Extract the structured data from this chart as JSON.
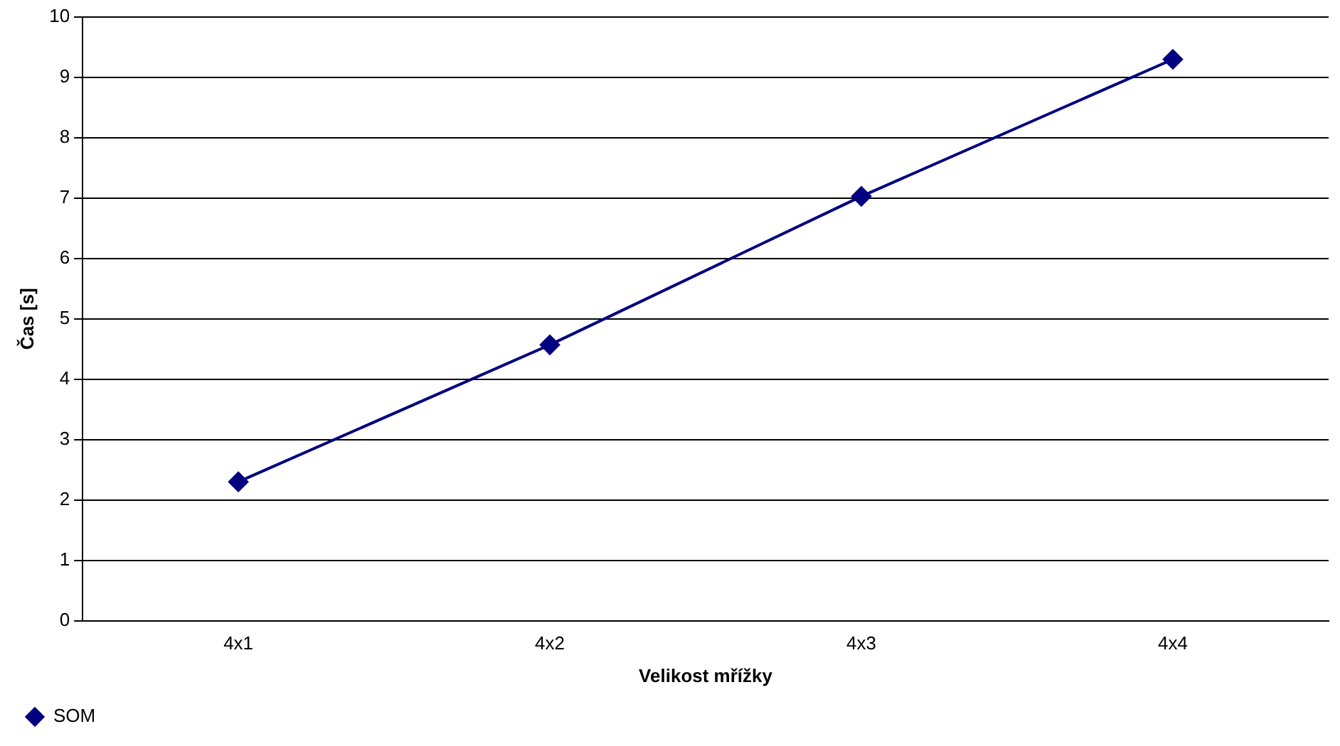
{
  "chart_data": {
    "type": "line",
    "xlabel": "Velikost mřížky",
    "ylabel": "Čas [s]",
    "categories": [
      "4x1",
      "4x2",
      "4x3",
      "4x4"
    ],
    "series": [
      {
        "name": "SOM",
        "color": "#000080",
        "values": [
          2.3,
          4.57,
          7.03,
          9.3
        ]
      }
    ],
    "ylim": [
      0,
      10
    ],
    "yticks": [
      0,
      1,
      2,
      3,
      4,
      5,
      6,
      7,
      8,
      9,
      10
    ],
    "grid": "y",
    "legend": "bottom left",
    "marker": "diamond",
    "line_style": "solid"
  }
}
